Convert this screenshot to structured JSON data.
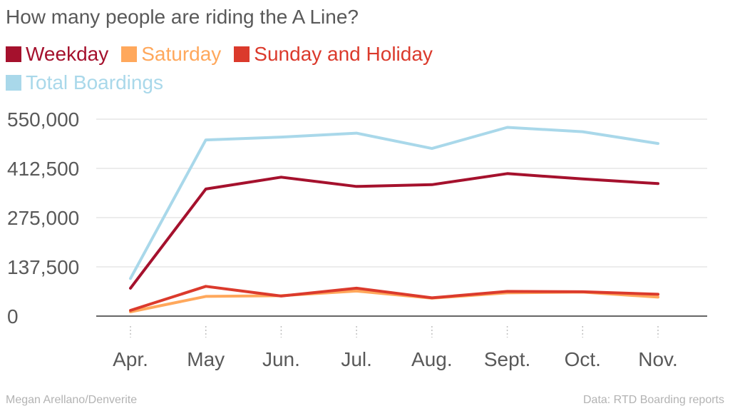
{
  "title": "How many people are riding the A Line?",
  "credit": "Megan Arellano/Denverite",
  "source": "Data: RTD Boarding reports",
  "chart_data": {
    "type": "line",
    "title": "How many people are riding the A Line?",
    "categories": [
      "Apr.",
      "May",
      "Jun.",
      "Jul.",
      "Aug.",
      "Sept.",
      "Oct.",
      "Nov."
    ],
    "y_ticks": [
      "0",
      "137,500",
      "275,000",
      "412,500",
      "550,000"
    ],
    "ylim": [
      0,
      550000
    ],
    "grid": true,
    "legend_position": "top-left",
    "series": [
      {
        "name": "Weekday",
        "color": "#a5112d",
        "values": [
          78000,
          355000,
          388000,
          362000,
          367000,
          398000,
          383000,
          370000
        ]
      },
      {
        "name": "Saturday",
        "color": "#ffa85c",
        "values": [
          12000,
          55000,
          57000,
          70000,
          50000,
          65000,
          67000,
          53000
        ]
      },
      {
        "name": "Sunday and Holiday",
        "color": "#db3a2c",
        "values": [
          16000,
          83000,
          56000,
          78000,
          51000,
          69000,
          68000,
          61000
        ]
      },
      {
        "name": "Total Boardings",
        "color": "#a9d8ea",
        "values": [
          105000,
          492000,
          500000,
          511000,
          468000,
          527000,
          515000,
          482000
        ]
      }
    ]
  }
}
